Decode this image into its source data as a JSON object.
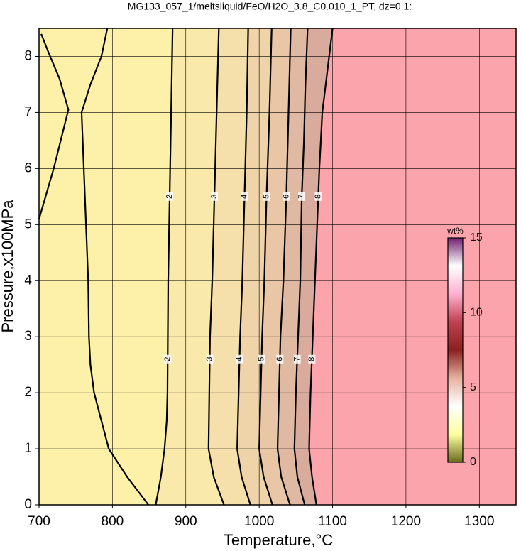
{
  "chart_data": {
    "type": "contour",
    "title": "MG133_057_1/meltsliquid/FeO/H2O_3.8_C0.010_1_PT, dz=0.1:",
    "x_label": "Temperature,°C",
    "y_label": "Pressure,x100MPa",
    "xlim": [
      700,
      1350
    ],
    "xticks": [
      700,
      800,
      900,
      1000,
      1100,
      1200,
      1300
    ],
    "ylim": [
      0,
      8.5
    ],
    "yticks": [
      0,
      1,
      2,
      3,
      4,
      5,
      6,
      7,
      8
    ],
    "grid": true,
    "above_color": "#fca4ab",
    "contours": [
      {
        "level": 8,
        "fill": "#d8ab9c",
        "x": [
          1078,
          1072,
          1068,
          1070,
          1073,
          1076,
          1079,
          1082,
          1086,
          1100
        ],
        "y": [
          0,
          0.5,
          1,
          2,
          3,
          4,
          5,
          6,
          7,
          8.5
        ]
      },
      {
        "level": 7,
        "fill": "#e0b9a2",
        "x": [
          1062,
          1052,
          1048,
          1050,
          1053,
          1056,
          1058,
          1061,
          1063,
          1066
        ],
        "y": [
          0,
          0.5,
          1,
          2,
          3,
          4,
          5.5,
          6.5,
          7.5,
          8.5
        ]
      },
      {
        "level": 6,
        "fill": "#e8c6a6",
        "x": [
          1042,
          1030,
          1025,
          1027,
          1029,
          1033,
          1037,
          1040,
          1043
        ],
        "y": [
          0,
          0.5,
          1,
          2,
          3,
          4,
          5.5,
          7,
          8.5
        ]
      },
      {
        "level": 5,
        "fill": "#efd4a9",
        "x": [
          1018,
          1006,
          1000,
          1002,
          1004,
          1007,
          1010,
          1014,
          1017
        ],
        "y": [
          0,
          0.5,
          1,
          2,
          3,
          4,
          5.5,
          7,
          8.5
        ]
      },
      {
        "level": 4,
        "fill": "#f5e0ab",
        "x": [
          988,
          976,
          970,
          972,
          974,
          977,
          980,
          983,
          985
        ],
        "y": [
          0,
          0.5,
          1,
          2,
          3,
          4,
          5.5,
          7,
          8.5
        ]
      },
      {
        "level": 3,
        "fill": "#f9e9ab",
        "x": [
          952,
          938,
          931,
          932,
          933,
          936,
          939,
          942,
          945
        ],
        "y": [
          0,
          0.5,
          1,
          2,
          3,
          4,
          5.5,
          7,
          8.5
        ]
      },
      {
        "level": 2,
        "fill": "#fdf1aa",
        "x": [
          859,
          866,
          871,
          874,
          875,
          876,
          878,
          880,
          882
        ],
        "y": [
          0,
          0.5,
          1,
          1.5,
          2,
          4,
          5.5,
          7,
          8.5
        ]
      },
      {
        "level": 1,
        "x": [
          849,
          820,
          795,
          775,
          770,
          768,
          767,
          764,
          758,
          770,
          785,
          793,
          null,
          700,
          720,
          740,
          728,
          712,
          703
        ],
        "y": [
          0,
          0.5,
          1,
          2,
          2.5,
          3,
          4,
          5,
          7,
          7.5,
          8,
          8.5,
          null,
          5.1,
          6,
          7.05,
          7.6,
          8.1,
          8.4
        ]
      }
    ],
    "label_pressures": [
      5.5,
      2.6
    ],
    "colorbar": {
      "label": "wt%",
      "lim": [
        0,
        15
      ],
      "ticks": [
        0,
        5,
        10,
        15
      ],
      "colors": [
        "#6b6b20",
        "#ffffa0",
        "#ffffff",
        "#e8b0a0",
        "#8b2020",
        "#c04050",
        "#ffb0d0",
        "#ffffff",
        "#702070"
      ]
    }
  }
}
